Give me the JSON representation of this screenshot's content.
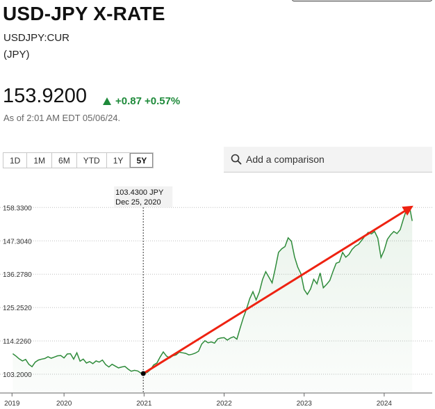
{
  "header": {
    "title": "USD-JPY X-RATE",
    "symbol": "USDJPY:CUR",
    "currency": "(JPY)"
  },
  "quote": {
    "price": "153.9200",
    "change": "+0.87",
    "change_pct": "+0.57%",
    "as_of": "As of 2:01 AM EDT 05/06/24.",
    "up_color": "#1e8a3a"
  },
  "ranges": [
    {
      "label": "1D",
      "active": false
    },
    {
      "label": "1M",
      "active": false
    },
    {
      "label": "6M",
      "active": false
    },
    {
      "label": "YTD",
      "active": false
    },
    {
      "label": "1Y",
      "active": false
    },
    {
      "label": "5Y",
      "active": true
    }
  ],
  "compare": {
    "placeholder": "Add a comparison",
    "icon": "search-icon"
  },
  "tooltip": {
    "value": "103.4300 JPY",
    "date": "Dec 25, 2020"
  },
  "chart_data": {
    "type": "area",
    "line_color": "#2e8b3a",
    "trend_color": "#ee2211",
    "y_ticks": [
      103.2,
      114.226,
      125.252,
      136.278,
      147.304,
      158.33
    ],
    "y_tick_labels": [
      "103.2000",
      "114.2260",
      "125.2520",
      "136.2780",
      "147.3040",
      "158.3300"
    ],
    "x_ticks": [
      2019.35,
      2020,
      2021,
      2022,
      2023,
      2024
    ],
    "x_tick_labels": [
      "2019",
      "2020",
      "2021",
      "2022",
      "2023",
      "2024"
    ],
    "xlim": [
      2019.2,
      2024.6
    ],
    "ylim": [
      97,
      163
    ],
    "highlight_point": [
      2020.99,
      103.43
    ],
    "trend_line": [
      [
        2020.99,
        103.43
      ],
      [
        2024.32,
        158.2
      ]
    ],
    "x": [
      2019.36,
      2019.4,
      2019.44,
      2019.48,
      2019.52,
      2019.56,
      2019.6,
      2019.64,
      2019.68,
      2019.72,
      2019.76,
      2019.8,
      2019.84,
      2019.88,
      2019.92,
      2019.96,
      2020.0,
      2020.04,
      2020.08,
      2020.12,
      2020.16,
      2020.2,
      2020.24,
      2020.28,
      2020.32,
      2020.36,
      2020.4,
      2020.44,
      2020.48,
      2020.52,
      2020.56,
      2020.6,
      2020.64,
      2020.68,
      2020.72,
      2020.76,
      2020.8,
      2020.84,
      2020.88,
      2020.92,
      2020.96,
      2020.99,
      2021.04,
      2021.08,
      2021.12,
      2021.16,
      2021.2,
      2021.24,
      2021.28,
      2021.32,
      2021.36,
      2021.4,
      2021.44,
      2021.48,
      2021.52,
      2021.56,
      2021.6,
      2021.64,
      2021.68,
      2021.72,
      2021.76,
      2021.8,
      2021.84,
      2021.88,
      2021.92,
      2021.96,
      2022.0,
      2022.04,
      2022.08,
      2022.12,
      2022.16,
      2022.2,
      2022.24,
      2022.28,
      2022.32,
      2022.36,
      2022.4,
      2022.44,
      2022.48,
      2022.52,
      2022.56,
      2022.6,
      2022.64,
      2022.68,
      2022.72,
      2022.76,
      2022.8,
      2022.84,
      2022.88,
      2022.92,
      2022.96,
      2023.0,
      2023.04,
      2023.08,
      2023.12,
      2023.16,
      2023.2,
      2023.24,
      2023.28,
      2023.32,
      2023.36,
      2023.4,
      2023.44,
      2023.48,
      2023.52,
      2023.56,
      2023.6,
      2023.64,
      2023.68,
      2023.72,
      2023.76,
      2023.8,
      2023.84,
      2023.88,
      2023.92,
      2023.96,
      2024.0,
      2024.04,
      2024.08,
      2024.12,
      2024.16,
      2024.2,
      2024.24,
      2024.28,
      2024.32,
      2024.35
    ],
    "y": [
      110.0,
      109.2,
      108.3,
      107.6,
      108.1,
      106.5,
      105.7,
      107.2,
      107.9,
      108.2,
      108.4,
      109.0,
      108.5,
      108.9,
      109.3,
      109.4,
      108.6,
      109.9,
      110.0,
      108.2,
      110.3,
      107.5,
      108.2,
      106.9,
      107.4,
      106.7,
      107.6,
      107.2,
      107.9,
      106.4,
      105.6,
      106.5,
      105.9,
      105.3,
      105.6,
      105.8,
      104.9,
      104.2,
      104.5,
      104.3,
      103.6,
      103.43,
      103.8,
      104.7,
      106.3,
      106.9,
      108.9,
      110.6,
      109.2,
      108.6,
      109.3,
      109.6,
      110.5,
      110.3,
      110.1,
      109.6,
      109.8,
      110.2,
      110.8,
      113.2,
      114.3,
      113.6,
      113.9,
      113.5,
      114.9,
      115.2,
      115.3,
      114.5,
      115.2,
      115.6,
      114.8,
      118.5,
      121.9,
      124.8,
      128.2,
      130.5,
      127.8,
      130.4,
      134.5,
      137.1,
      135.3,
      133.4,
      138.2,
      143.5,
      144.7,
      145.4,
      148.3,
      147.2,
      142.0,
      138.6,
      136.4,
      131.2,
      129.6,
      131.4,
      134.6,
      133.1,
      136.7,
      131.8,
      132.9,
      134.2,
      137.2,
      139.9,
      140.3,
      143.5,
      141.9,
      142.8,
      144.5,
      145.6,
      146.2,
      147.5,
      148.9,
      150.1,
      149.6,
      150.4,
      148.2,
      141.8,
      144.2,
      147.8,
      149.3,
      150.4,
      149.7,
      151.0,
      154.5,
      157.8,
      158.2,
      153.9
    ]
  }
}
